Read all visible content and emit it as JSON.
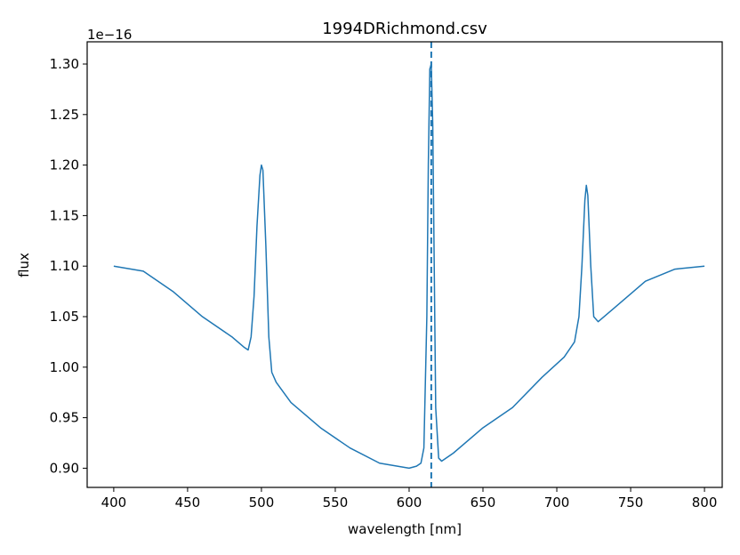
{
  "chart_data": {
    "type": "line",
    "title": "1994DRichmond.csv",
    "xlabel": "wavelength [nm]",
    "ylabel": "flux",
    "offset_text": "1e−16",
    "xlim": [
      382,
      812
    ],
    "ylim": [
      0.881,
      1.322
    ],
    "x_ticks": [
      400,
      450,
      500,
      550,
      600,
      650,
      700,
      750,
      800
    ],
    "x_tick_labels": [
      "400",
      "450",
      "500",
      "550",
      "600",
      "650",
      "700",
      "750",
      "800"
    ],
    "y_ticks": [
      0.9,
      0.95,
      1.0,
      1.05,
      1.1,
      1.15,
      1.2,
      1.25,
      1.3
    ],
    "y_tick_labels": [
      "0.90",
      "0.95",
      "1.00",
      "1.05",
      "1.10",
      "1.15",
      "1.20",
      "1.25",
      "1.30"
    ],
    "grid": false,
    "line_color": "#1f77b4",
    "marker_line": {
      "x": 615,
      "style": "dashed",
      "color": "#1f77b4"
    },
    "series": [
      {
        "x": [
          400,
          420,
          440,
          460,
          480,
          488,
          491,
          493,
          495,
          497,
          499,
          500,
          501,
          503,
          505,
          507,
          510,
          520,
          540,
          560,
          580,
          600,
          605,
          608,
          610,
          612,
          613,
          614,
          615,
          616,
          617,
          618,
          620,
          622,
          630,
          650,
          670,
          690,
          705,
          712,
          715,
          717,
          719,
          720,
          721,
          723,
          725,
          728,
          740,
          760,
          780,
          800
        ],
        "y": [
          1.1,
          1.095,
          1.075,
          1.05,
          1.03,
          1.02,
          1.017,
          1.03,
          1.07,
          1.14,
          1.19,
          1.2,
          1.195,
          1.12,
          1.03,
          0.995,
          0.985,
          0.965,
          0.94,
          0.92,
          0.905,
          0.9,
          0.902,
          0.905,
          0.92,
          1.05,
          1.2,
          1.295,
          1.3,
          1.24,
          1.1,
          0.96,
          0.91,
          0.907,
          0.915,
          0.94,
          0.96,
          0.99,
          1.01,
          1.025,
          1.05,
          1.1,
          1.165,
          1.18,
          1.17,
          1.1,
          1.05,
          1.045,
          1.06,
          1.085,
          1.097,
          1.1
        ]
      }
    ]
  }
}
